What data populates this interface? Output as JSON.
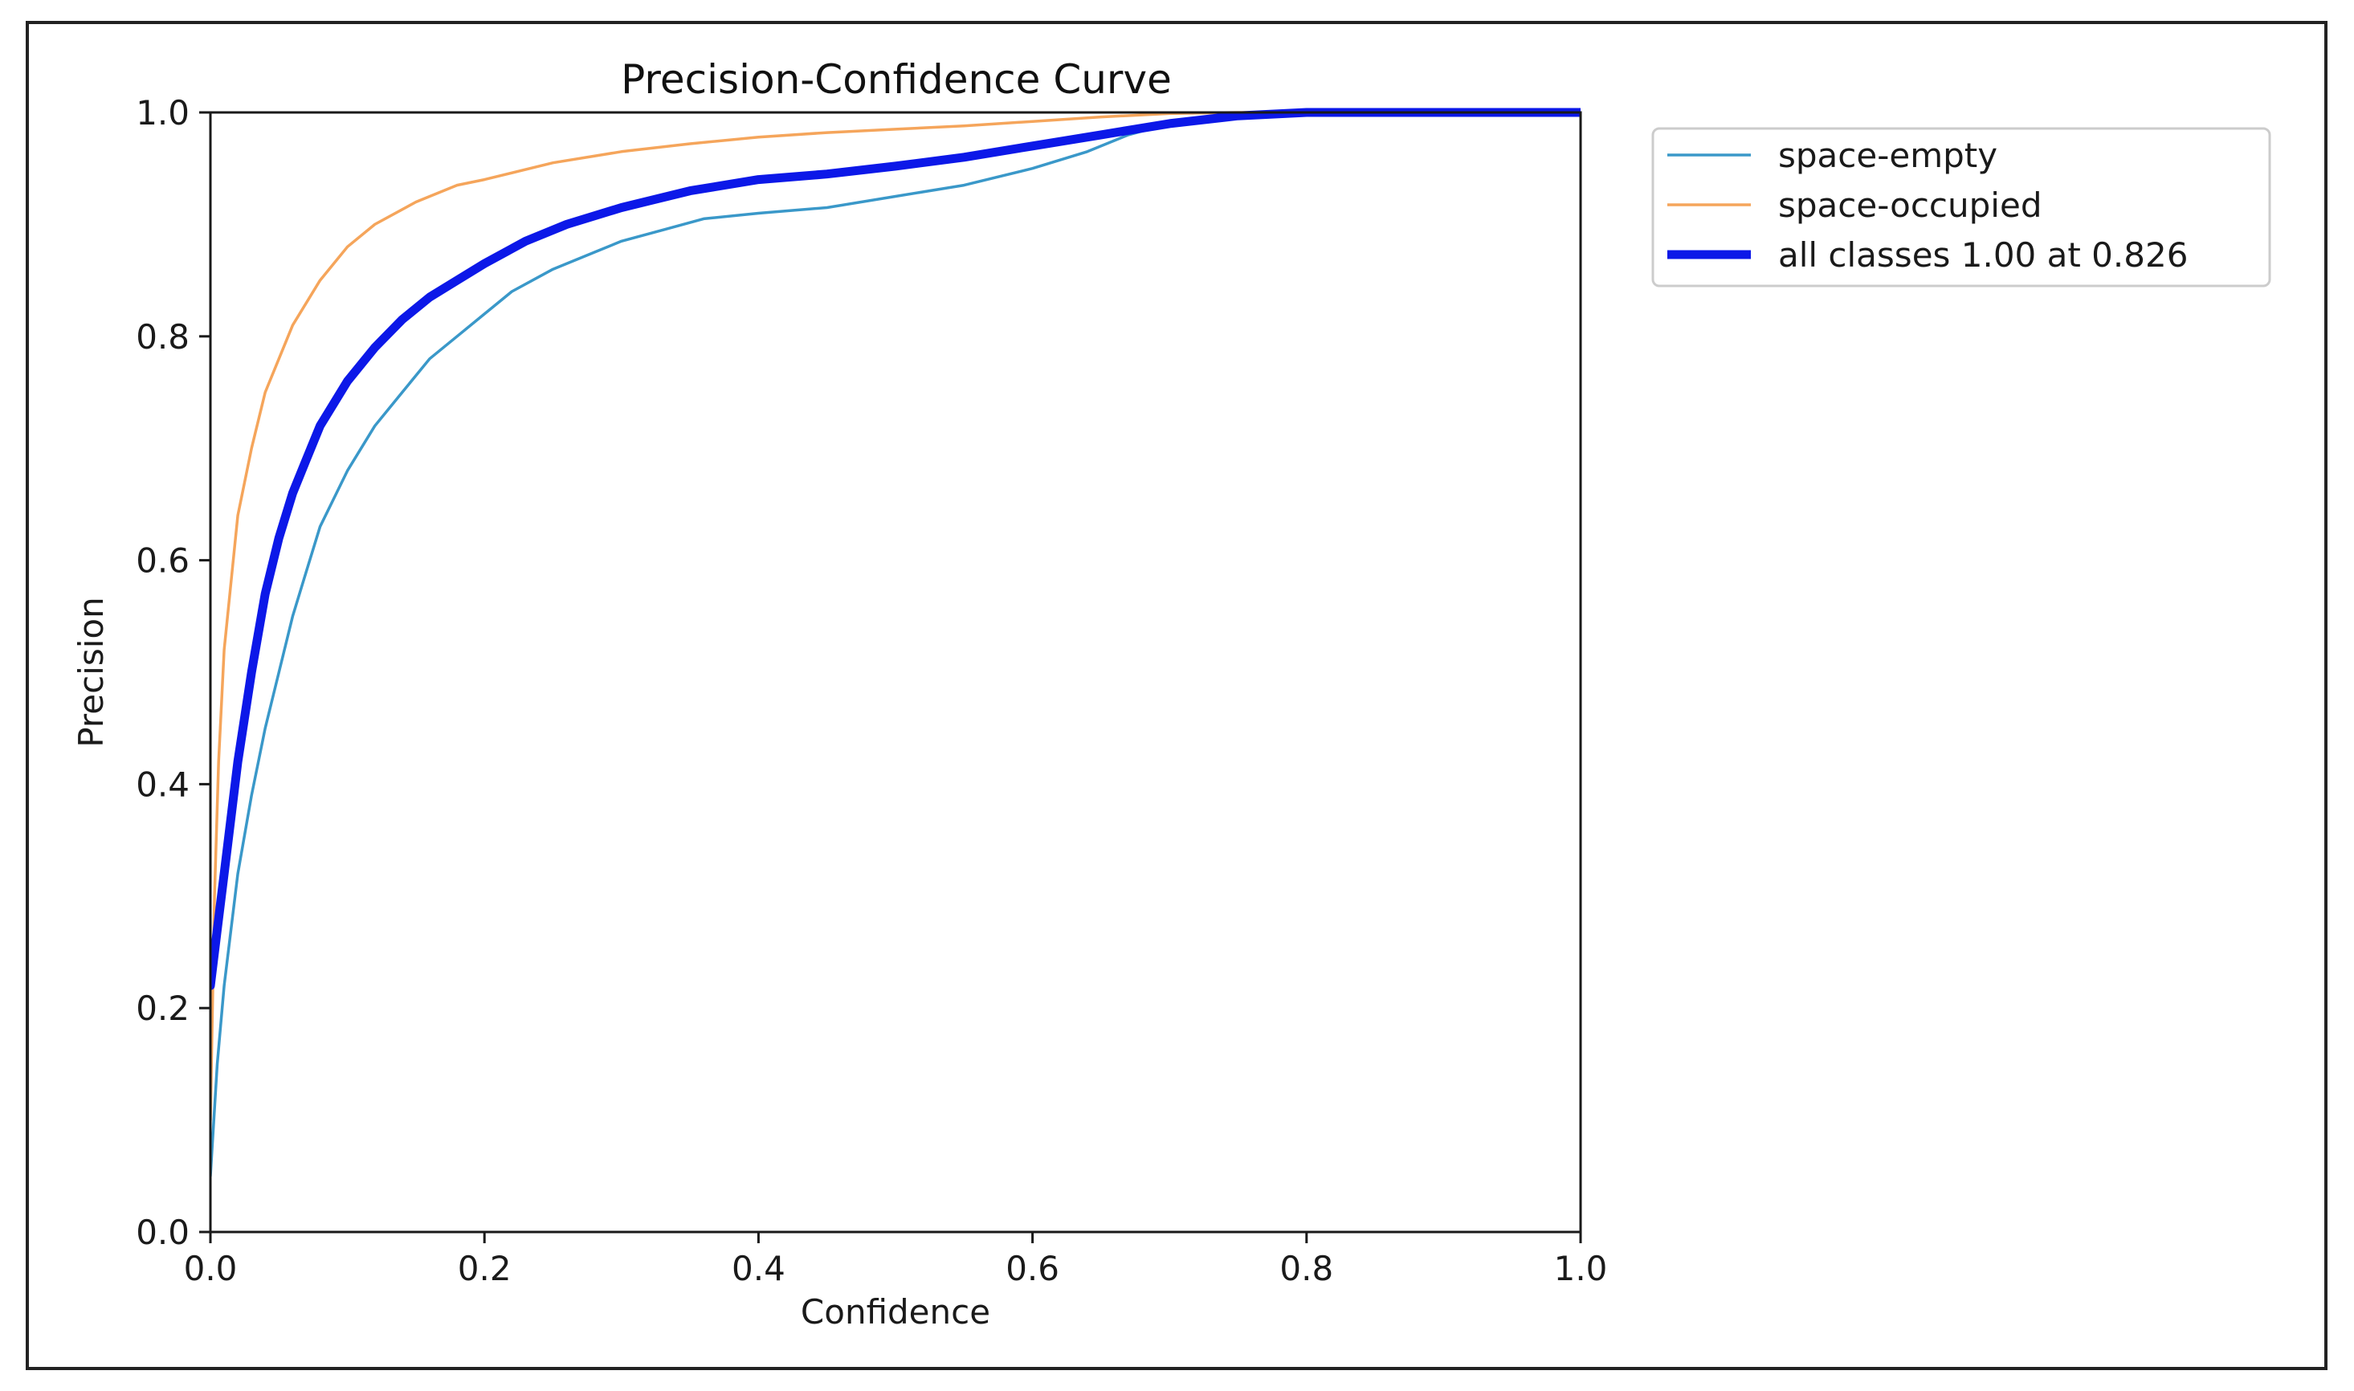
{
  "chart_data": {
    "type": "line",
    "title": "Precision-Confidence Curve",
    "xlabel": "Confidence",
    "ylabel": "Precision",
    "xlim": [
      0.0,
      1.0
    ],
    "ylim": [
      0.0,
      1.0
    ],
    "xticks": [
      "0.0",
      "0.2",
      "0.4",
      "0.6",
      "0.8",
      "1.0"
    ],
    "yticks": [
      "0.0",
      "0.2",
      "0.4",
      "0.6",
      "0.8",
      "1.0"
    ],
    "grid": false,
    "legend_position": "outside-top-right",
    "series": [
      {
        "name": "space-empty",
        "color": "#3a98c9",
        "line_style": "thin",
        "x": [
          0.0,
          0.005,
          0.01,
          0.02,
          0.03,
          0.04,
          0.05,
          0.06,
          0.07,
          0.08,
          0.1,
          0.12,
          0.14,
          0.16,
          0.18,
          0.2,
          0.22,
          0.25,
          0.28,
          0.3,
          0.33,
          0.36,
          0.4,
          0.45,
          0.5,
          0.55,
          0.6,
          0.64,
          0.67,
          0.7,
          0.73,
          0.76,
          0.8,
          0.9,
          1.0
        ],
        "y": [
          0.05,
          0.15,
          0.22,
          0.32,
          0.39,
          0.45,
          0.5,
          0.55,
          0.59,
          0.63,
          0.68,
          0.72,
          0.75,
          0.78,
          0.8,
          0.82,
          0.84,
          0.86,
          0.875,
          0.885,
          0.895,
          0.905,
          0.91,
          0.915,
          0.925,
          0.935,
          0.95,
          0.965,
          0.98,
          0.99,
          0.995,
          1.0,
          1.0,
          1.0,
          1.0
        ]
      },
      {
        "name": "space-occupied",
        "color": "#f5a55b",
        "line_style": "thin",
        "x": [
          0.0,
          0.003,
          0.006,
          0.01,
          0.015,
          0.02,
          0.03,
          0.04,
          0.05,
          0.06,
          0.08,
          0.1,
          0.12,
          0.15,
          0.18,
          0.2,
          0.25,
          0.3,
          0.35,
          0.4,
          0.45,
          0.5,
          0.55,
          0.6,
          0.65,
          0.7,
          0.75,
          0.8,
          0.9,
          1.0
        ],
        "y": [
          0.1,
          0.3,
          0.42,
          0.52,
          0.58,
          0.64,
          0.7,
          0.75,
          0.78,
          0.81,
          0.85,
          0.88,
          0.9,
          0.92,
          0.935,
          0.94,
          0.955,
          0.965,
          0.972,
          0.978,
          0.982,
          0.985,
          0.988,
          0.992,
          0.996,
          0.999,
          1.0,
          1.0,
          1.0,
          1.0
        ]
      },
      {
        "name": "all classes 1.00 at 0.826",
        "color": "#0c18e8",
        "line_style": "thick",
        "x": [
          0.0,
          0.005,
          0.01,
          0.015,
          0.02,
          0.03,
          0.04,
          0.05,
          0.06,
          0.07,
          0.08,
          0.1,
          0.12,
          0.14,
          0.16,
          0.18,
          0.2,
          0.23,
          0.26,
          0.3,
          0.35,
          0.4,
          0.45,
          0.5,
          0.55,
          0.6,
          0.65,
          0.7,
          0.75,
          0.8,
          0.826,
          0.9,
          1.0
        ],
        "y": [
          0.22,
          0.27,
          0.32,
          0.37,
          0.42,
          0.5,
          0.57,
          0.62,
          0.66,
          0.69,
          0.72,
          0.76,
          0.79,
          0.815,
          0.835,
          0.85,
          0.865,
          0.885,
          0.9,
          0.915,
          0.93,
          0.94,
          0.945,
          0.952,
          0.96,
          0.97,
          0.98,
          0.99,
          0.997,
          1.0,
          1.0,
          1.0,
          1.0
        ]
      }
    ]
  }
}
